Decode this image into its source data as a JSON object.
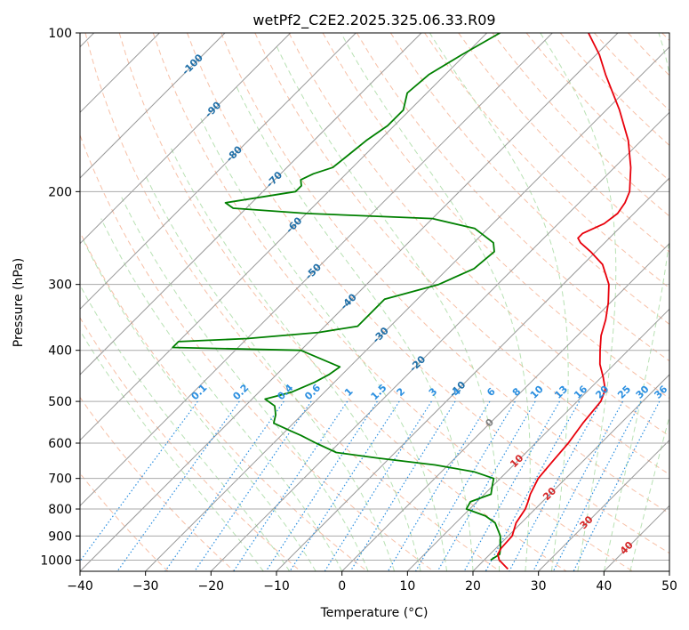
{
  "chart_data": {
    "type": "skew-t",
    "title": "wetPf2_C2E2.2025.325.06.33.R09",
    "xlabel": "Temperature (°C)",
    "ylabel": "Pressure (hPa)",
    "xlim": [
      -40,
      50
    ],
    "plim": [
      1050,
      100
    ],
    "x_ticks": [
      -40,
      -30,
      -20,
      -10,
      0,
      10,
      20,
      30,
      40,
      50
    ],
    "x_tick_labels": [
      "−40",
      "−30",
      "−20",
      "−10",
      "0",
      "10",
      "20",
      "30",
      "40",
      "50"
    ],
    "p_ticks": [
      100,
      200,
      300,
      400,
      500,
      600,
      700,
      800,
      900,
      1000
    ],
    "p_tick_labels": [
      "100",
      "200",
      "300",
      "400",
      "500",
      "600",
      "700",
      "800",
      "900",
      "1000"
    ],
    "grid": true,
    "colors": {
      "temperature": "#e8000b",
      "dewpoint": "#008000",
      "isotherm_label": "#1f6fa8",
      "mixing_ratio": "#2b8fe0",
      "dry_adiabat": "#f4a582",
      "moist_adiabat": "#a6d9a0",
      "warm_label": "#d62728",
      "zero_label": "#808080"
    },
    "isotherm_labels": [
      {
        "label": "-100",
        "t": -100,
        "p": 115
      },
      {
        "label": "-90",
        "t": -90,
        "p": 140
      },
      {
        "label": "-80",
        "t": -80,
        "p": 170
      },
      {
        "label": "-70",
        "t": -70,
        "p": 190
      },
      {
        "label": "-60",
        "t": -60,
        "p": 232
      },
      {
        "label": "-50",
        "t": -50,
        "p": 284
      },
      {
        "label": "-40",
        "t": -40,
        "p": 324
      },
      {
        "label": "-30",
        "t": -30,
        "p": 375
      },
      {
        "label": "-20",
        "t": -20,
        "p": 425
      },
      {
        "label": "-10",
        "t": -10,
        "p": 475
      }
    ],
    "warm_isotherm_labels": [
      {
        "label": "0",
        "t": 0,
        "p": 550,
        "kind": "zero"
      },
      {
        "label": "10",
        "t": 10,
        "p": 650,
        "kind": "warm"
      },
      {
        "label": "20",
        "t": 20,
        "p": 750,
        "kind": "warm"
      },
      {
        "label": "30",
        "t": 30,
        "p": 850,
        "kind": "warm"
      },
      {
        "label": "40",
        "t": 40,
        "p": 950,
        "kind": "warm"
      }
    ],
    "mixing_ratio_labels": [
      "0.1",
      "0.2",
      "0.4",
      "0.6",
      "1",
      "1.5",
      "2",
      "3",
      "4",
      "6",
      "8",
      "10",
      "13",
      "16",
      "20",
      "25",
      "30",
      "36"
    ],
    "mixing_ratio_values": [
      0.1,
      0.2,
      0.4,
      0.6,
      1,
      1.5,
      2,
      3,
      4,
      6,
      8,
      10,
      13,
      16,
      20,
      25,
      30,
      36
    ],
    "series": [
      {
        "name": "Temperature",
        "points": [
          [
            1040,
            25.0
          ],
          [
            1000,
            22.3
          ],
          [
            975,
            21.2
          ],
          [
            950,
            20.8
          ],
          [
            900,
            20.6
          ],
          [
            850,
            19.2
          ],
          [
            800,
            18.5
          ],
          [
            775,
            17.8
          ],
          [
            750,
            17.0
          ],
          [
            700,
            15.8
          ],
          [
            650,
            15.4
          ],
          [
            600,
            15.0
          ],
          [
            550,
            14.2
          ],
          [
            500,
            13.6
          ],
          [
            475,
            12.5
          ],
          [
            450,
            10.3
          ],
          [
            425,
            7.8
          ],
          [
            400,
            5.7
          ],
          [
            375,
            3.6
          ],
          [
            350,
            1.9
          ],
          [
            325,
            -0.3
          ],
          [
            300,
            -3.0
          ],
          [
            275,
            -7.0
          ],
          [
            260,
            -10.8
          ],
          [
            250,
            -13.7
          ],
          [
            245,
            -14.8
          ],
          [
            240,
            -14.8
          ],
          [
            230,
            -13.0
          ],
          [
            220,
            -12.5
          ],
          [
            210,
            -13.0
          ],
          [
            200,
            -14.0
          ],
          [
            180,
            -17.5
          ],
          [
            160,
            -22.0
          ],
          [
            140,
            -28.0
          ],
          [
            120,
            -35.5
          ],
          [
            110,
            -39.5
          ],
          [
            100,
            -44.5
          ]
        ]
      },
      {
        "name": "Dewpoint",
        "points": [
          [
            1000,
            21.0
          ],
          [
            975,
            21.5
          ],
          [
            950,
            20.7
          ],
          [
            900,
            18.8
          ],
          [
            850,
            16.0
          ],
          [
            825,
            13.5
          ],
          [
            800,
            9.5
          ],
          [
            775,
            9.0
          ],
          [
            750,
            11.0
          ],
          [
            725,
            10.0
          ],
          [
            700,
            9.0
          ],
          [
            680,
            5.0
          ],
          [
            660,
            -2.0
          ],
          [
            640,
            -12.0
          ],
          [
            625,
            -19.0
          ],
          [
            600,
            -23.5
          ],
          [
            580,
            -27.0
          ],
          [
            570,
            -29.0
          ],
          [
            550,
            -33.0
          ],
          [
            530,
            -34.0
          ],
          [
            510,
            -35.5
          ],
          [
            495,
            -38.0
          ],
          [
            490,
            -37.0
          ],
          [
            480,
            -35.0
          ],
          [
            460,
            -33.0
          ],
          [
            445,
            -32.0
          ],
          [
            430,
            -31.5
          ],
          [
            400,
            -40.0
          ],
          [
            395,
            -60.0
          ],
          [
            385,
            -60.0
          ],
          [
            380,
            -50.0
          ],
          [
            370,
            -40.0
          ],
          [
            360,
            -35.0
          ],
          [
            340,
            -35.0
          ],
          [
            320,
            -35.0
          ],
          [
            300,
            -29.0
          ],
          [
            280,
            -26.0
          ],
          [
            260,
            -25.5
          ],
          [
            250,
            -27.0
          ],
          [
            235,
            -32.0
          ],
          [
            225,
            -40.0
          ],
          [
            220,
            -60.0
          ],
          [
            215,
            -72.0
          ],
          [
            210,
            -74.0
          ],
          [
            200,
            -65.0
          ],
          [
            195,
            -65.0
          ],
          [
            190,
            -66.0
          ],
          [
            185,
            -65.0
          ],
          [
            180,
            -63.0
          ],
          [
            170,
            -62.5
          ],
          [
            160,
            -62.0
          ],
          [
            150,
            -61.0
          ],
          [
            140,
            -61.0
          ],
          [
            130,
            -63.0
          ],
          [
            120,
            -62.5
          ],
          [
            110,
            -60.5
          ],
          [
            100,
            -58.0
          ]
        ]
      }
    ]
  }
}
